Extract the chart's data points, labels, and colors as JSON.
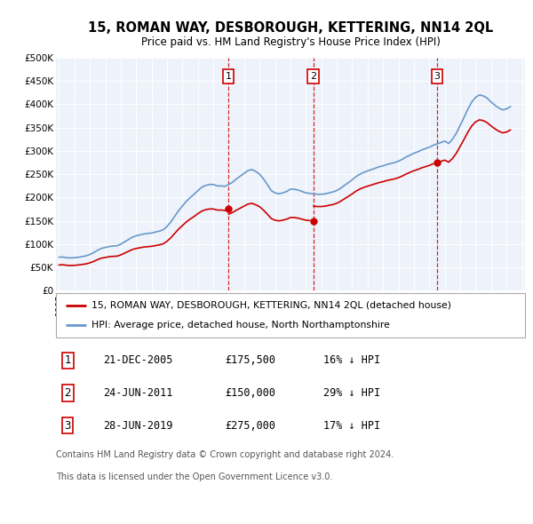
{
  "title": "15, ROMAN WAY, DESBOROUGH, KETTERING, NN14 2QL",
  "subtitle": "Price paid vs. HM Land Registry's House Price Index (HPI)",
  "hpi_label": "HPI: Average price, detached house, North Northamptonshire",
  "property_label": "15, ROMAN WAY, DESBOROUGH, KETTERING, NN14 2QL (detached house)",
  "property_color": "#cc0000",
  "hpi_color": "#6699cc",
  "plot_bg": "#eef2fb",
  "ylim": [
    0,
    500000
  ],
  "yticks": [
    0,
    50000,
    100000,
    150000,
    200000,
    250000,
    300000,
    350000,
    400000,
    450000,
    500000
  ],
  "ytick_labels": [
    "£0",
    "£50K",
    "£100K",
    "£150K",
    "£200K",
    "£250K",
    "£300K",
    "£350K",
    "£400K",
    "£450K",
    "£500K"
  ],
  "transactions": [
    {
      "num": 1,
      "date": "21-DEC-2005",
      "price": 175500,
      "price_str": "£175,500",
      "pct": "16%",
      "dir": "↓",
      "year": 2005.97
    },
    {
      "num": 2,
      "date": "24-JUN-2011",
      "price": 150000,
      "price_str": "£150,000",
      "pct": "29%",
      "dir": "↓",
      "year": 2011.48
    },
    {
      "num": 3,
      "date": "28-JUN-2019",
      "price": 275000,
      "price_str": "£275,000",
      "pct": "17%",
      "dir": "↓",
      "year": 2019.49
    }
  ],
  "footer1": "Contains HM Land Registry data © Crown copyright and database right 2024.",
  "footer2": "This data is licensed under the Open Government Licence v3.0.",
  "hpi_data": {
    "years": [
      1995.0,
      1995.25,
      1995.5,
      1995.75,
      1996.0,
      1996.25,
      1996.5,
      1996.75,
      1997.0,
      1997.25,
      1997.5,
      1997.75,
      1998.0,
      1998.25,
      1998.5,
      1998.75,
      1999.0,
      1999.25,
      1999.5,
      1999.75,
      2000.0,
      2000.25,
      2000.5,
      2000.75,
      2001.0,
      2001.25,
      2001.5,
      2001.75,
      2002.0,
      2002.25,
      2002.5,
      2002.75,
      2003.0,
      2003.25,
      2003.5,
      2003.75,
      2004.0,
      2004.25,
      2004.5,
      2004.75,
      2005.0,
      2005.25,
      2005.5,
      2005.75,
      2006.0,
      2006.25,
      2006.5,
      2006.75,
      2007.0,
      2007.25,
      2007.5,
      2007.75,
      2008.0,
      2008.25,
      2008.5,
      2008.75,
      2009.0,
      2009.25,
      2009.5,
      2009.75,
      2010.0,
      2010.25,
      2010.5,
      2010.75,
      2011.0,
      2011.25,
      2011.5,
      2011.75,
      2012.0,
      2012.25,
      2012.5,
      2012.75,
      2013.0,
      2013.25,
      2013.5,
      2013.75,
      2014.0,
      2014.25,
      2014.5,
      2014.75,
      2015.0,
      2015.25,
      2015.5,
      2015.75,
      2016.0,
      2016.25,
      2016.5,
      2016.75,
      2017.0,
      2017.25,
      2017.5,
      2017.75,
      2018.0,
      2018.25,
      2018.5,
      2018.75,
      2019.0,
      2019.25,
      2019.5,
      2019.75,
      2020.0,
      2020.25,
      2020.5,
      2020.75,
      2021.0,
      2021.25,
      2021.5,
      2021.75,
      2022.0,
      2022.25,
      2022.5,
      2022.75,
      2023.0,
      2023.25,
      2023.5,
      2023.75,
      2024.0,
      2024.25
    ],
    "values": [
      72000,
      72500,
      71000,
      70500,
      71000,
      72000,
      73500,
      75000,
      78000,
      82000,
      87000,
      91000,
      93000,
      95000,
      96000,
      96500,
      100000,
      105000,
      110000,
      115000,
      118000,
      120000,
      122000,
      123000,
      124000,
      126000,
      128000,
      131000,
      138000,
      148000,
      160000,
      172000,
      182000,
      192000,
      200000,
      207000,
      215000,
      222000,
      226000,
      228000,
      228000,
      225000,
      225000,
      224000,
      228000,
      233000,
      240000,
      246000,
      252000,
      258000,
      260000,
      256000,
      250000,
      240000,
      228000,
      215000,
      210000,
      208000,
      210000,
      213000,
      218000,
      218000,
      216000,
      213000,
      210000,
      209000,
      208000,
      207000,
      207000,
      208000,
      210000,
      212000,
      215000,
      220000,
      226000,
      232000,
      238000,
      245000,
      250000,
      254000,
      257000,
      260000,
      263000,
      266000,
      268000,
      271000,
      273000,
      275000,
      278000,
      282000,
      287000,
      291000,
      295000,
      298000,
      302000,
      305000,
      308000,
      312000,
      315000,
      318000,
      321000,
      316000,
      325000,
      338000,
      355000,
      372000,
      390000,
      405000,
      415000,
      420000,
      418000,
      413000,
      405000,
      398000,
      392000,
      388000,
      390000,
      395000
    ]
  }
}
